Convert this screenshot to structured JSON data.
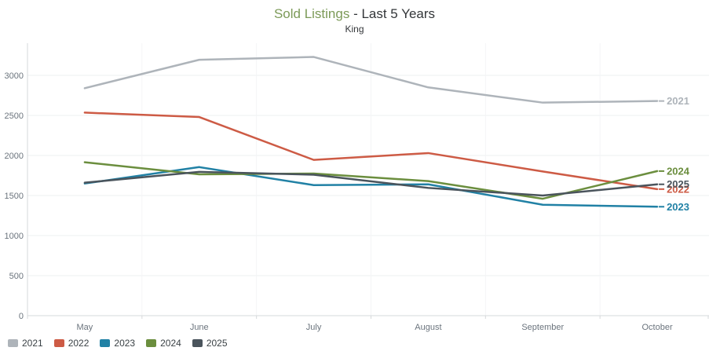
{
  "header": {
    "title_main": "Sold Listings",
    "title_rest": " - Last 5 Years",
    "subtitle": "King",
    "title_accent_color": "#7c9a58"
  },
  "chart_data": {
    "type": "line",
    "title": "Sold Listings - Last 5 Years",
    "subtitle": "King",
    "categories": [
      "May",
      "June",
      "July",
      "August",
      "September",
      "October"
    ],
    "series": [
      {
        "name": "2021",
        "color": "#aeb4ba",
        "values": [
          2840,
          3195,
          3230,
          2850,
          2660,
          2680
        ]
      },
      {
        "name": "2022",
        "color": "#cd5b45",
        "values": [
          2535,
          2480,
          1945,
          2030,
          1800,
          1580
        ]
      },
      {
        "name": "2023",
        "color": "#2181a5",
        "values": [
          1650,
          1855,
          1630,
          1640,
          1385,
          1360
        ]
      },
      {
        "name": "2024",
        "color": "#6b8e3e",
        "values": [
          1915,
          1765,
          1775,
          1680,
          1460,
          1805
        ]
      },
      {
        "name": "2025",
        "color": "#4a545c",
        "values": [
          1660,
          1795,
          1760,
          1595,
          1500,
          1640
        ]
      }
    ],
    "xlabel": "",
    "ylabel": "",
    "ylim": [
      0,
      3400
    ],
    "yticks": [
      0,
      500,
      1000,
      1500,
      2000,
      2500,
      3000
    ],
    "grid": true,
    "legend_position": "bottom-left",
    "end_labels_order": [
      "2021",
      "2024",
      "2025",
      "2022",
      "2023"
    ]
  }
}
